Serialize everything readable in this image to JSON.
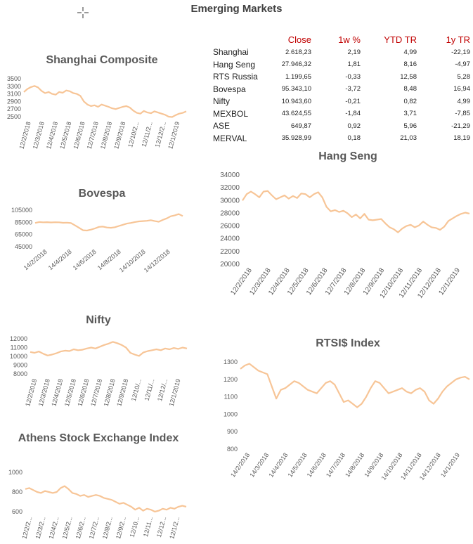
{
  "page_title": "Emerging Markets",
  "table": {
    "headers": [
      "",
      "Close",
      "1w %",
      "YTD TR",
      "1y TR"
    ],
    "rows": [
      [
        "Shanghai",
        "2.618,23",
        "2,19",
        "4,99",
        "-22,19"
      ],
      [
        "Hang Seng",
        "27.946,32",
        "1,81",
        "8,16",
        "-4,97"
      ],
      [
        "RTS Russia",
        "1.199,65",
        "-0,33",
        "12,58",
        "5,28"
      ],
      [
        "Bovespa",
        "95.343,10",
        "-3,72",
        "8,48",
        "16,94"
      ],
      [
        "Nifty",
        "10.943,60",
        "-0,21",
        "0,82",
        "4,99"
      ],
      [
        "MEXBOL",
        "43.624,55",
        "-1,84",
        "3,71",
        "-7,85"
      ],
      [
        "ASE",
        "649,87",
        "0,92",
        "5,96",
        "-21,29"
      ],
      [
        "MERVAL",
        "35.928,99",
        "0,18",
        "21,03",
        "18,19"
      ]
    ]
  },
  "colors": {
    "series": "#f7c597",
    "header_text": "#c00000",
    "title_text": "#595959"
  },
  "chart_data": [
    {
      "id": "shanghai",
      "type": "line",
      "title": "Shanghai Composite",
      "ylim": [
        2500,
        3500
      ],
      "yticks": [
        "3500",
        "3300",
        "3100",
        "2900",
        "2700",
        "2500"
      ],
      "xticks": [
        "12/2/2018",
        "12/3/2018",
        "12/4/2018",
        "12/5/2018",
        "12/6/2018",
        "12/7/2018",
        "12/8/2018",
        "12/9/2018",
        "12/10/2...",
        "12/11/2...",
        "12/12/2...",
        "12/1/2019"
      ],
      "values": [
        3150,
        3230,
        3280,
        3310,
        3270,
        3180,
        3120,
        3150,
        3100,
        3080,
        3150,
        3130,
        3190,
        3170,
        3120,
        3100,
        3050,
        2900,
        2820,
        2780,
        2800,
        2760,
        2820,
        2790,
        2760,
        2720,
        2700,
        2730,
        2760,
        2780,
        2740,
        2660,
        2600,
        2580,
        2650,
        2610,
        2590,
        2640,
        2610,
        2580,
        2550,
        2500,
        2490,
        2540,
        2580,
        2600,
        2640
      ]
    },
    {
      "id": "bovespa",
      "type": "line",
      "title": "Bovespa",
      "ylim": [
        45000,
        105000
      ],
      "yticks": [
        "105000",
        "85000",
        "65000",
        "45000"
      ],
      "xticks": [
        "14/2/2018",
        "14/4/2018",
        "14/6/2018",
        "14/8/2018",
        "14/10/2018",
        "14/12/2018"
      ],
      "values": [
        84000,
        85500,
        85000,
        85300,
        84800,
        85200,
        85000,
        84200,
        84500,
        83800,
        80000,
        76000,
        72000,
        71500,
        73000,
        75000,
        77500,
        78000,
        76500,
        76000,
        77000,
        79000,
        81000,
        83000,
        84000,
        85500,
        86500,
        87000,
        87500,
        88500,
        87000,
        86000,
        89000,
        91500,
        95000,
        96500,
        98500,
        95343
      ]
    },
    {
      "id": "nifty",
      "type": "line",
      "title": "Nifty",
      "ylim": [
        8000,
        12000
      ],
      "yticks": [
        "12000",
        "11000",
        "10000",
        "9000",
        "8000"
      ],
      "xticks": [
        "12/2/2018",
        "12/3/2018",
        "12/4/2018",
        "12/5/2018",
        "12/6/2018",
        "12/7/2018",
        "12/8/2018",
        "12/9/2018",
        "12/10/...",
        "12/11/...",
        "12/12/...",
        "12/1/2019"
      ],
      "values": [
        10500,
        10400,
        10550,
        10300,
        10100,
        10200,
        10350,
        10550,
        10650,
        10600,
        10800,
        10700,
        10750,
        10900,
        11000,
        10900,
        11100,
        11300,
        11450,
        11650,
        11500,
        11300,
        11000,
        10400,
        10200,
        10050,
        10450,
        10600,
        10700,
        10800,
        10700,
        10900,
        10800,
        10950,
        10850,
        11000,
        10900
      ]
    },
    {
      "id": "ase",
      "type": "line",
      "title": "Athens Stock Exchange Index",
      "ylim": [
        600,
        1000
      ],
      "yticks": [
        "1000",
        "800",
        "600"
      ],
      "xticks": [
        "12/2/2...",
        "12/3/2...",
        "12/4/2...",
        "12/5/2...",
        "12/6/2...",
        "12/7/2...",
        "12/8/2...",
        "12/9/2...",
        "12/10...",
        "12/11...",
        "12/12...",
        "12/1/2..."
      ],
      "values": [
        830,
        840,
        820,
        800,
        790,
        810,
        800,
        790,
        800,
        840,
        860,
        830,
        790,
        780,
        760,
        770,
        750,
        760,
        770,
        760,
        740,
        730,
        720,
        700,
        680,
        690,
        670,
        650,
        620,
        640,
        610,
        630,
        620,
        600,
        610,
        630,
        620,
        640,
        630,
        650,
        660,
        650
      ]
    },
    {
      "id": "hangseng",
      "type": "line",
      "title": "Hang Seng",
      "ylim": [
        20000,
        34000
      ],
      "yticks": [
        "34000",
        "32000",
        "30000",
        "28000",
        "26000",
        "24000",
        "22000",
        "20000"
      ],
      "xticks": [
        "12/2/2018",
        "12/3/2018",
        "12/4/2018",
        "12/5/2018",
        "12/6/2018",
        "12/7/2018",
        "12/8/2018",
        "12/9/2018",
        "12/10/2018",
        "12/11/2018",
        "12/12/2018",
        "12/1/2019"
      ],
      "values": [
        30000,
        31000,
        31400,
        31000,
        30500,
        31400,
        31500,
        30800,
        30200,
        30500,
        30800,
        30300,
        30700,
        30400,
        31100,
        31000,
        30500,
        31000,
        31300,
        30500,
        29000,
        28300,
        28500,
        28200,
        28400,
        28000,
        27400,
        27800,
        27200,
        27900,
        27000,
        26900,
        27000,
        27100,
        26400,
        25800,
        25500,
        25000,
        25600,
        26000,
        26200,
        25800,
        26100,
        26700,
        26200,
        25800,
        25700,
        25400,
        25900,
        26800,
        27200,
        27600,
        27900,
        28100,
        27946
      ]
    },
    {
      "id": "rts",
      "type": "line",
      "title": "RTSI$ Index",
      "ylim": [
        800,
        1300
      ],
      "yticks": [
        "1300",
        "1200",
        "1100",
        "1000",
        "900",
        "800"
      ],
      "xticks": [
        "14/2/2018",
        "14/3/2018",
        "14/4/2018",
        "14/5/2018",
        "14/6/2018",
        "14/7/2018",
        "14/8/2018",
        "14/9/2018",
        "14/10/2018",
        "14/11/2018",
        "14/12/2018",
        "14/1/2019"
      ],
      "values": [
        1260,
        1280,
        1290,
        1270,
        1250,
        1240,
        1230,
        1160,
        1090,
        1140,
        1150,
        1170,
        1190,
        1180,
        1160,
        1140,
        1130,
        1120,
        1150,
        1180,
        1190,
        1170,
        1120,
        1070,
        1080,
        1060,
        1040,
        1060,
        1100,
        1150,
        1190,
        1180,
        1150,
        1120,
        1130,
        1140,
        1150,
        1130,
        1120,
        1140,
        1150,
        1130,
        1080,
        1060,
        1090,
        1130,
        1160,
        1180,
        1200,
        1210,
        1215,
        1200
      ]
    }
  ]
}
